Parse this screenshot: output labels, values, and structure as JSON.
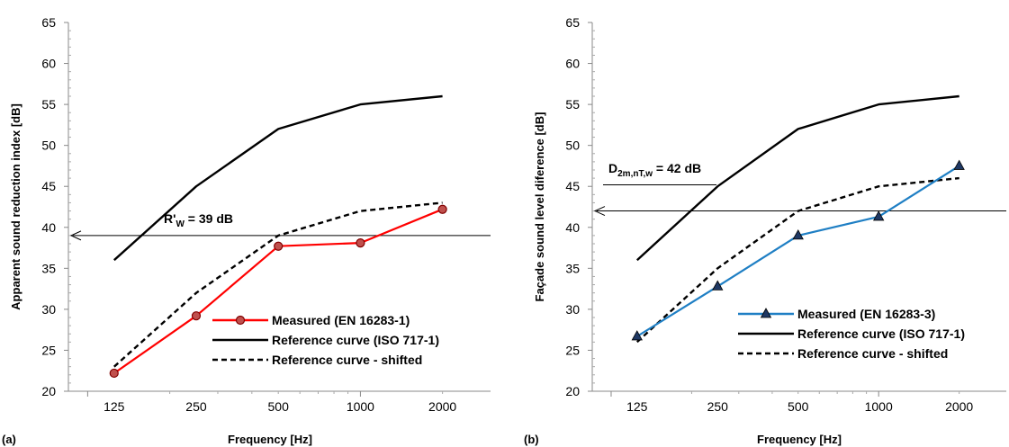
{
  "chart_data": [
    {
      "type": "line",
      "panel_label": "(a)",
      "xlabel": "Frequency [Hz]",
      "ylabel": "Apparent sound reduction index [dB]",
      "categories": [
        "125",
        "250",
        "500",
        "1000",
        "2000"
      ],
      "x": [
        125,
        250,
        500,
        1000,
        2000
      ],
      "ylim": [
        20,
        65
      ],
      "yticks": [
        20,
        25,
        30,
        35,
        40,
        45,
        50,
        55,
        60,
        65
      ],
      "x_scale": "log",
      "grid": false,
      "legend_position": "bottom-right",
      "series": [
        {
          "name": "Measured (EN 16283-1)",
          "values": [
            22.2,
            29.2,
            37.7,
            38.1,
            42.2
          ],
          "color": "#ff0000",
          "marker": "circle",
          "line": "solid"
        },
        {
          "name": "Reference curve (ISO 717-1)",
          "values": [
            36,
            45,
            52,
            55,
            56
          ],
          "color": "#000000",
          "marker": "none",
          "line": "solid"
        },
        {
          "name": "Reference curve - shifted",
          "values": [
            23,
            32,
            39,
            42,
            43
          ],
          "color": "#000000",
          "marker": "none",
          "line": "dashed"
        }
      ],
      "annotation": {
        "main": "R'",
        "sub": "W",
        "suffix": " = 39 dB",
        "value": 39
      }
    },
    {
      "type": "line",
      "panel_label": "(b)",
      "xlabel": "Frequency [Hz]",
      "ylabel": "Façade sound level diference  [dB]",
      "categories": [
        "125",
        "250",
        "500",
        "1000",
        "2000"
      ],
      "x": [
        125,
        250,
        500,
        1000,
        2000
      ],
      "ylim": [
        20,
        65
      ],
      "yticks": [
        20,
        25,
        30,
        35,
        40,
        45,
        50,
        55,
        60,
        65
      ],
      "x_scale": "log",
      "grid": false,
      "legend_position": "bottom-right",
      "series": [
        {
          "name": "Measured (EN 16283-3)",
          "values": [
            26.7,
            32.8,
            39,
            41.3,
            47.5
          ],
          "color": "#1f7fc4",
          "marker": "triangle",
          "line": "solid"
        },
        {
          "name": "Reference curve (ISO 717-1)",
          "values": [
            36,
            45,
            52,
            55,
            56
          ],
          "color": "#000000",
          "marker": "none",
          "line": "solid"
        },
        {
          "name": "Reference curve - shifted",
          "values": [
            26,
            35,
            42,
            45,
            46
          ],
          "color": "#000000",
          "marker": "none",
          "line": "dashed"
        }
      ],
      "annotation": {
        "main": "D",
        "sub": "2m,nT,w",
        "suffix": " = 42 dB",
        "value": 42
      }
    }
  ]
}
